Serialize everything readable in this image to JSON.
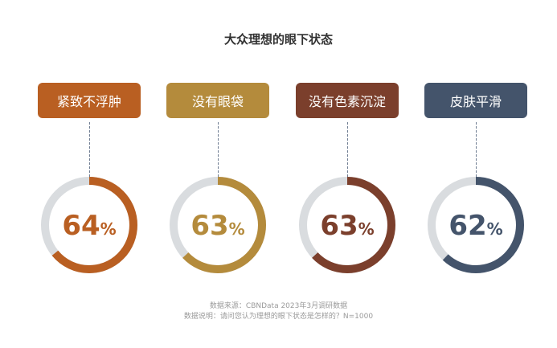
{
  "title": "大众理想的眼下状态",
  "chart_data": {
    "type": "donut",
    "title": "大众理想的眼下状态",
    "unit": "%",
    "items": [
      {
        "label": "紧致不浮肿",
        "value": 64,
        "color": "#b95f22"
      },
      {
        "label": "没有眼袋",
        "value": 63,
        "color": "#b48b3c"
      },
      {
        "label": "没有色素沉淀",
        "value": 63,
        "color": "#7b3f2c"
      },
      {
        "label": "皮肤平滑",
        "value": 62,
        "color": "#44546b"
      }
    ],
    "track_color": "#d9dcdf"
  },
  "footer": {
    "source": "数据来源：CBNData 2023年3月调研数据",
    "note": "数据说明：请问您认为理想的眼下状态是怎样的？N=1000"
  }
}
